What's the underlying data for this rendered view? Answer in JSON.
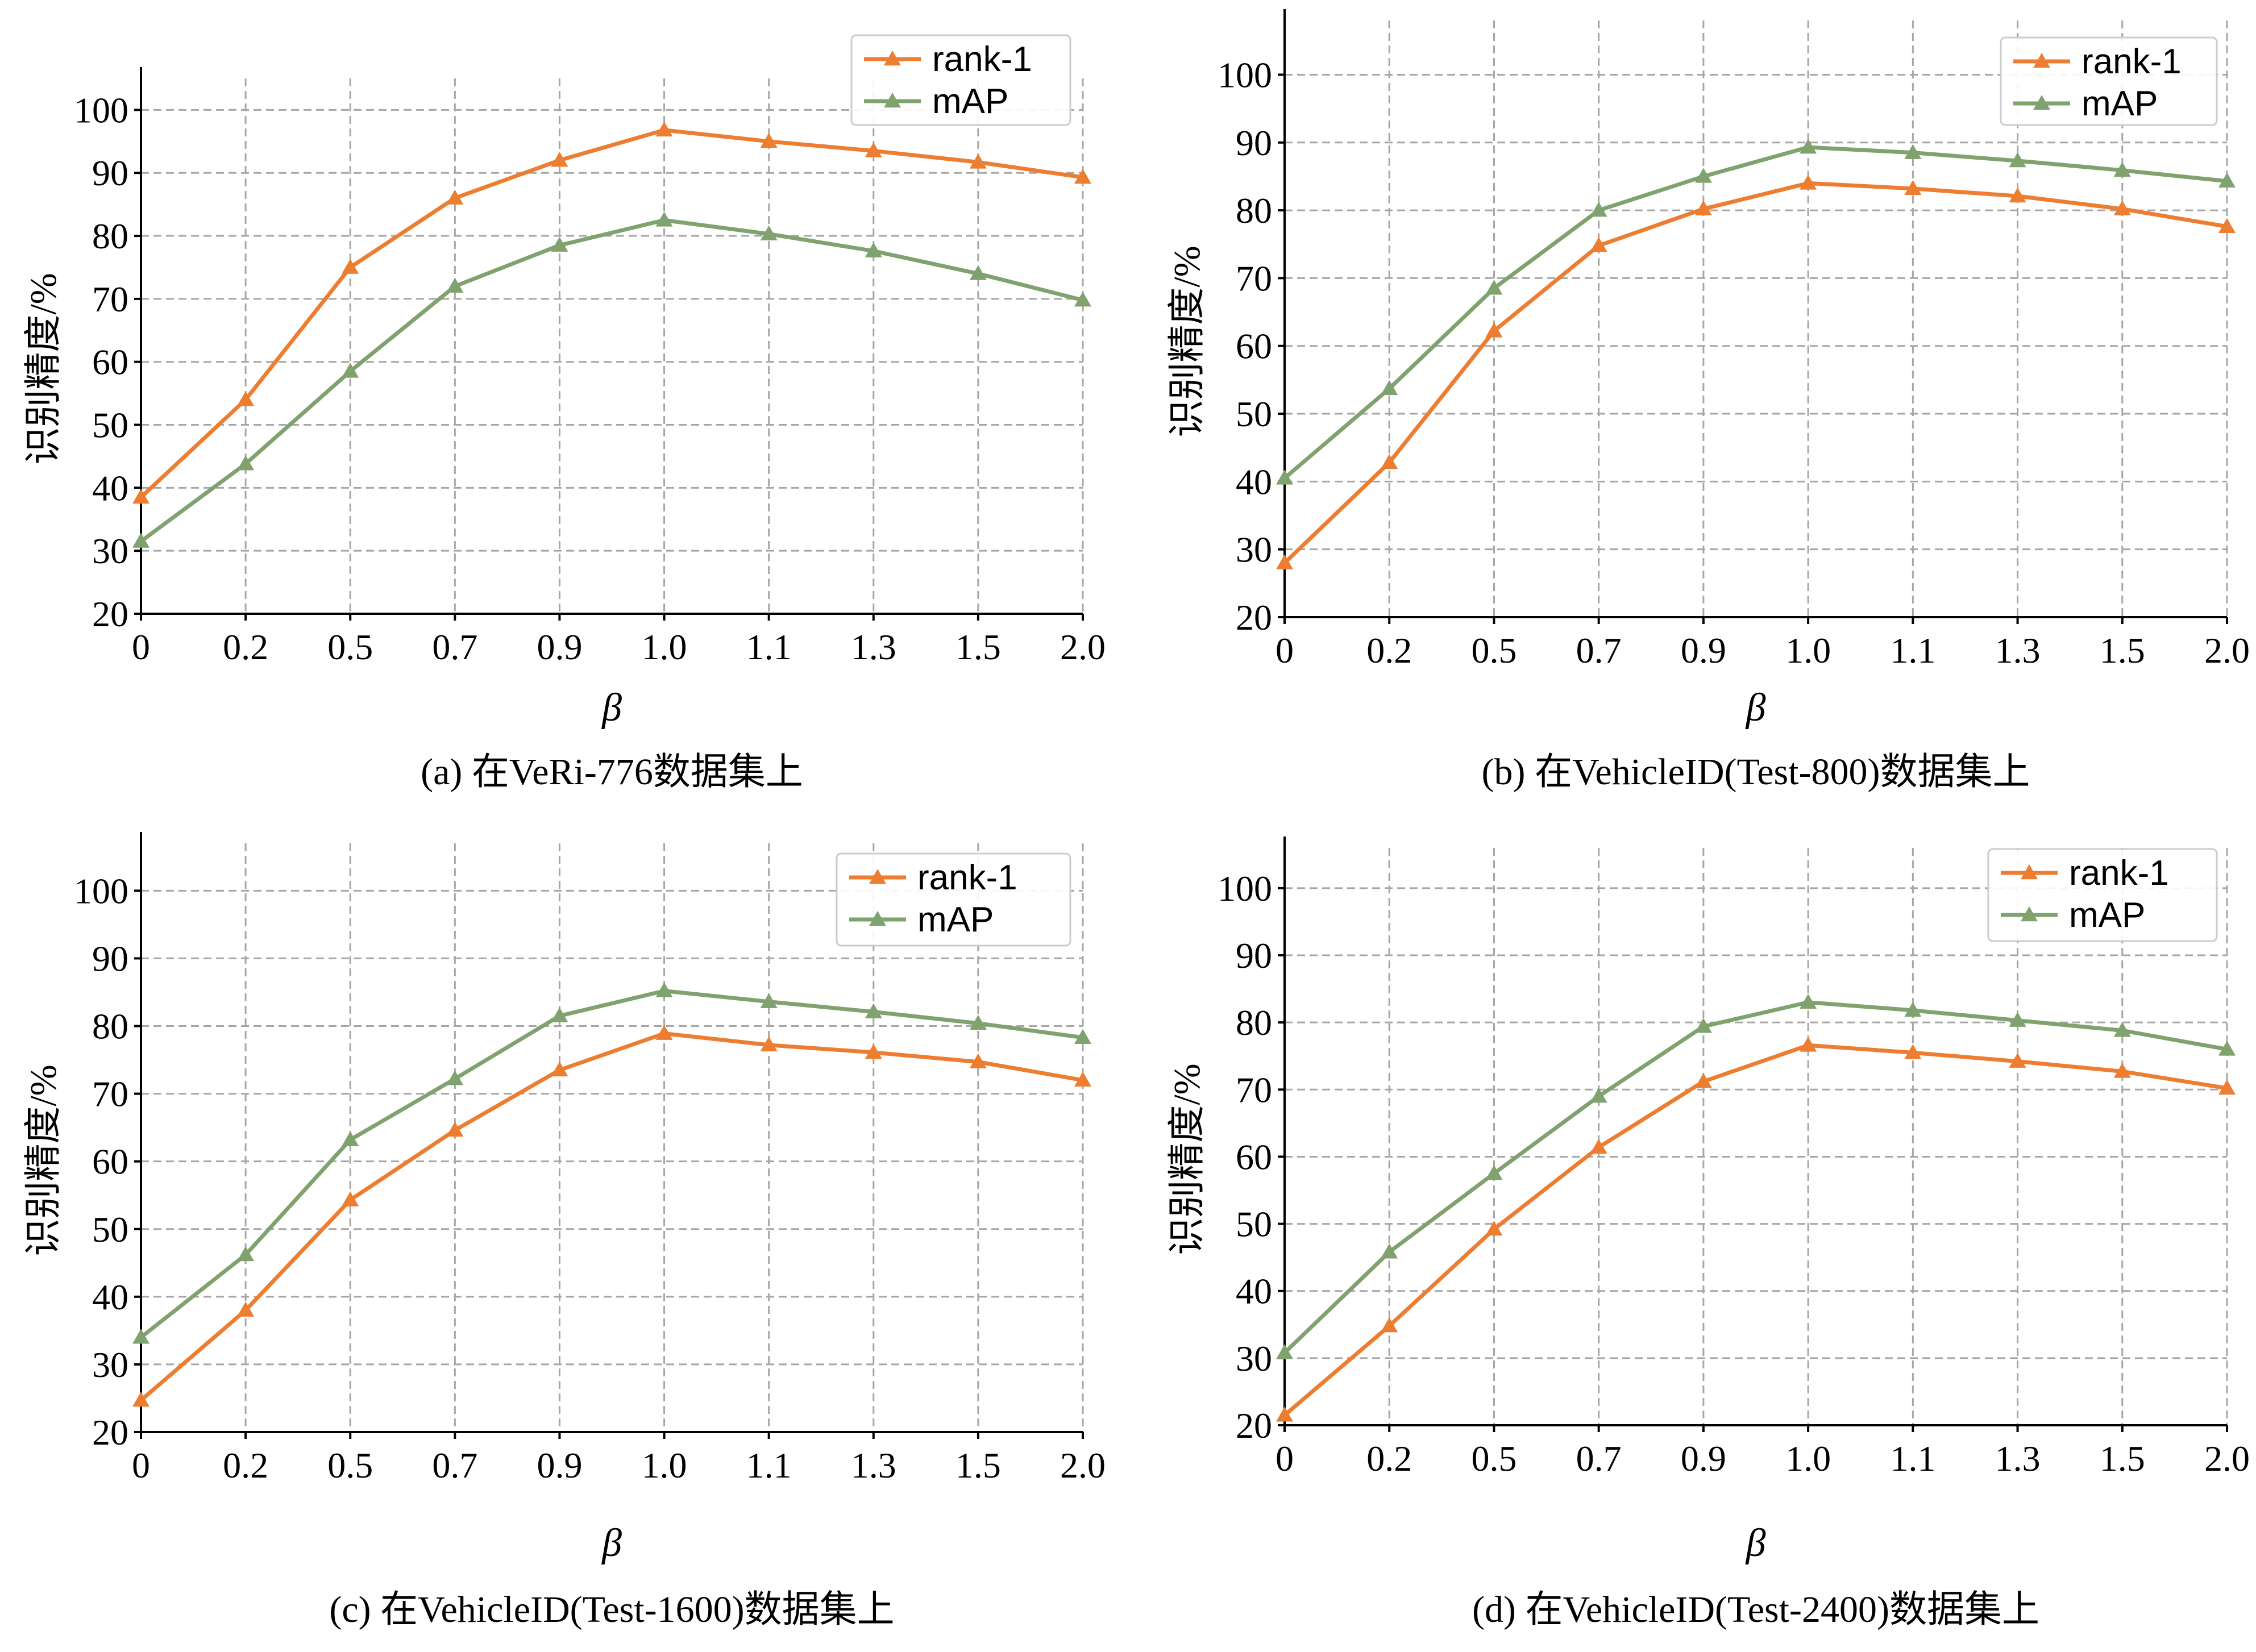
{
  "figure": {
    "colors": {
      "rank1": "#ed7d31",
      "map": "#7fa26f"
    }
  },
  "chart_data": [
    {
      "type": "line",
      "caption": "(a) 在VeRi-776数据集上",
      "xlabel": "β",
      "ylabel": "识别精度/%",
      "categories": [
        "0",
        "0.2",
        "0.5",
        "0.7",
        "0.9",
        "1.0",
        "1.1",
        "1.3",
        "1.5",
        "2.0"
      ],
      "ylim": [
        20,
        105
      ],
      "yticks": [
        20,
        30,
        40,
        50,
        60,
        70,
        80,
        90,
        100
      ],
      "legend_position": "top-right",
      "grid": true,
      "series": [
        {
          "name": "rank-1",
          "color": "#ed7d31",
          "values": [
            38.5,
            54,
            75,
            86,
            92,
            96.8,
            95,
            93.5,
            91.7,
            89.3
          ]
        },
        {
          "name": "mAP",
          "color": "#7fa26f",
          "values": [
            31.5,
            43.8,
            58.5,
            72,
            78.5,
            82.5,
            80.3,
            77.6,
            74,
            69.8
          ]
        }
      ]
    },
    {
      "type": "line",
      "caption": "(b) 在VehicleID(Test-800)数据集上",
      "xlabel": "β",
      "ylabel": "识别精度/%",
      "categories": [
        "0",
        "0.2",
        "0.5",
        "0.7",
        "0.9",
        "1.0",
        "1.1",
        "1.3",
        "1.5",
        "2.0"
      ],
      "ylim": [
        20,
        108
      ],
      "yticks": [
        20,
        30,
        40,
        50,
        60,
        70,
        80,
        90,
        100
      ],
      "legend_position": "top-right",
      "grid": true,
      "series": [
        {
          "name": "rank-1",
          "color": "#ed7d31",
          "values": [
            28,
            42.8,
            62.2,
            74.8,
            80.2,
            84,
            83.2,
            82.1,
            80.2,
            77.6
          ]
        },
        {
          "name": "mAP",
          "color": "#7fa26f",
          "values": [
            40.5,
            53.7,
            68.5,
            80,
            85,
            89.3,
            88.5,
            87.3,
            85.9,
            84.3
          ]
        }
      ]
    },
    {
      "type": "line",
      "caption": "(c) 在VehicleID(Test-1600)数据集上",
      "xlabel": "β",
      "ylabel": "识别精度/%",
      "categories": [
        "0",
        "0.2",
        "0.5",
        "0.7",
        "0.9",
        "1.0",
        "1.1",
        "1.3",
        "1.5",
        "2.0"
      ],
      "ylim": [
        20,
        107
      ],
      "yticks": [
        20,
        30,
        40,
        50,
        60,
        70,
        80,
        90,
        100
      ],
      "legend_position": "top-right",
      "grid": true,
      "series": [
        {
          "name": "rank-1",
          "color": "#ed7d31",
          "values": [
            24.7,
            38,
            54.3,
            64.6,
            73.5,
            78.9,
            77.2,
            76.1,
            74.7,
            72
          ]
        },
        {
          "name": "mAP",
          "color": "#7fa26f",
          "values": [
            34,
            46.2,
            63.2,
            72.2,
            81.5,
            85.2,
            83.6,
            82.1,
            80.4,
            78.3
          ]
        }
      ]
    },
    {
      "type": "line",
      "caption": "(d) 在VehicleID(Test-2400)数据集上",
      "xlabel": "β",
      "ylabel": "识别精度/%",
      "categories": [
        "0",
        "0.2",
        "0.5",
        "0.7",
        "0.9",
        "1.0",
        "1.1",
        "1.3",
        "1.5",
        "2.0"
      ],
      "ylim": [
        20,
        106
      ],
      "yticks": [
        20,
        30,
        40,
        50,
        60,
        70,
        80,
        90,
        100
      ],
      "legend_position": "top-right",
      "grid": true,
      "series": [
        {
          "name": "rank-1",
          "color": "#ed7d31",
          "values": [
            21.5,
            34.8,
            49.2,
            61.4,
            71.2,
            76.6,
            75.5,
            74.2,
            72.7,
            70.2
          ]
        },
        {
          "name": "mAP",
          "color": "#7fa26f",
          "values": [
            30.8,
            45.8,
            57.5,
            69,
            79.4,
            83,
            81.8,
            80.3,
            78.8,
            76
          ]
        }
      ]
    }
  ]
}
